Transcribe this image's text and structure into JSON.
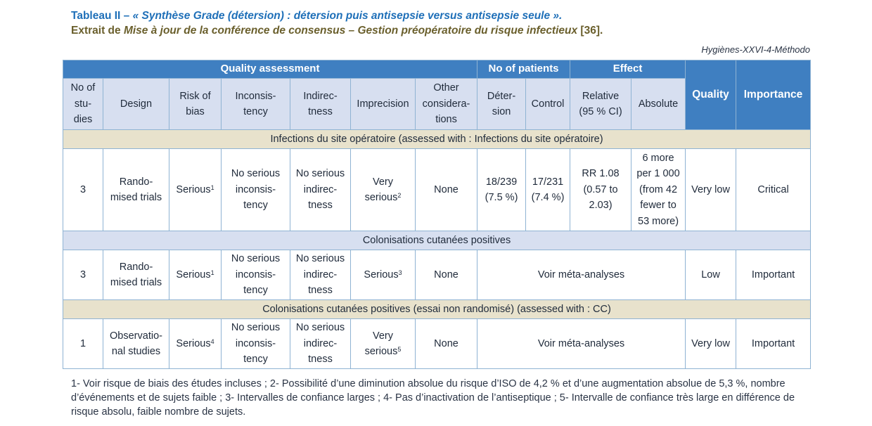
{
  "caption": {
    "label": "Tableau II",
    "dash1": " – ",
    "title_italic": "« Synthèse Grade (détersion) : détersion puis antisepsie versus antisepsie seule ».",
    "extract_prefix": "Extrait de ",
    "extract_italic": "Mise à jour de la conférence de consensus – Gestion préopératoire du risque infectieux",
    "extract_ref": " [36]."
  },
  "source": "Hygiènes-XXVI-4-Méthodo",
  "header": {
    "quality_assessment": "Quality assessment",
    "no_of_patients": "No of patients",
    "effect": "Effect",
    "quality": "Quality",
    "importance": "Importance",
    "sub": {
      "no_of_studies": [
        "No of",
        "stu-",
        "dies"
      ],
      "design": "Design",
      "risk_of_bias": [
        "Risk of",
        "bias"
      ],
      "inconsistency": [
        "Inconsis-",
        "tency"
      ],
      "indirectness": [
        "Indirec-",
        "tness"
      ],
      "imprecision": "Imprecision",
      "other": [
        "Other",
        "considera-",
        "tions"
      ],
      "detersion": [
        "Déter-",
        "sion"
      ],
      "control": "Control",
      "relative": [
        "Relative",
        "(95 % CI)"
      ],
      "absolute": "Absolute"
    }
  },
  "sections": [
    {
      "title": "Infections du site opératoire (assessed with : Infections du site opératoire)",
      "row": {
        "studies": "3",
        "design": [
          "Rando-",
          "mised trials"
        ],
        "risk_of_bias": "Serious",
        "risk_sup": "1",
        "inconsistency": [
          "No serious",
          "inconsis-",
          "tency"
        ],
        "indirectness": [
          "No serious",
          "indirec-",
          "tness"
        ],
        "imprecision": [
          "Very",
          "serious"
        ],
        "imprecision_sup": "2",
        "other": "None",
        "detersion": [
          "18/239",
          "(7.5 %)"
        ],
        "control": [
          "17/231",
          "(7.4 %)"
        ],
        "relative": [
          "RR 1.08",
          "(0.57 to",
          "2.03)"
        ],
        "absolute": [
          "6 more",
          "per 1 000",
          "(from 42",
          "fewer to",
          "53 more)"
        ],
        "quality": "Very low",
        "importance": "Critical"
      }
    },
    {
      "title": "Colonisations cutanées positives",
      "row": {
        "studies": "3",
        "design": [
          "Rando-",
          "mised trials"
        ],
        "risk_of_bias": "Serious",
        "risk_sup": "1",
        "inconsistency": [
          "No serious",
          "inconsis-",
          "tency"
        ],
        "indirectness": [
          "No serious",
          "indirec-",
          "tness"
        ],
        "imprecision": [
          "Serious"
        ],
        "imprecision_sup": "3",
        "other": "None",
        "merged": "Voir méta-analyses",
        "quality": "Low",
        "importance": "Important"
      }
    },
    {
      "title": "Colonisations cutanées positives (essai non randomisé) (assessed with : CC)",
      "row": {
        "studies": "1",
        "design": [
          "Observatio-",
          "nal studies"
        ],
        "risk_of_bias": "Serious",
        "risk_sup": "4",
        "inconsistency": [
          "No serious",
          "inconsis-",
          "tency"
        ],
        "indirectness": [
          "No serious",
          "indirec-",
          "tness"
        ],
        "imprecision": [
          "Very",
          "serious"
        ],
        "imprecision_sup": "5",
        "other": "None",
        "merged": "Voir méta-analyses",
        "quality": "Very low",
        "importance": "Important"
      }
    }
  ],
  "footnote": "1- Voir risque de biais des études incluses ; 2- Possibilité d’une diminution absolue du risque d’ISO de 4,2 % et d’une augmentation absolue de 5,3 %, nombre d’événements et de sujets faible ; 3- Intervalles de confiance larges ; 4- Pas d’inactivation de l’antiseptique ; 5- Intervalle de confiance très large en différence de risque absolu, faible nombre de sujets."
}
